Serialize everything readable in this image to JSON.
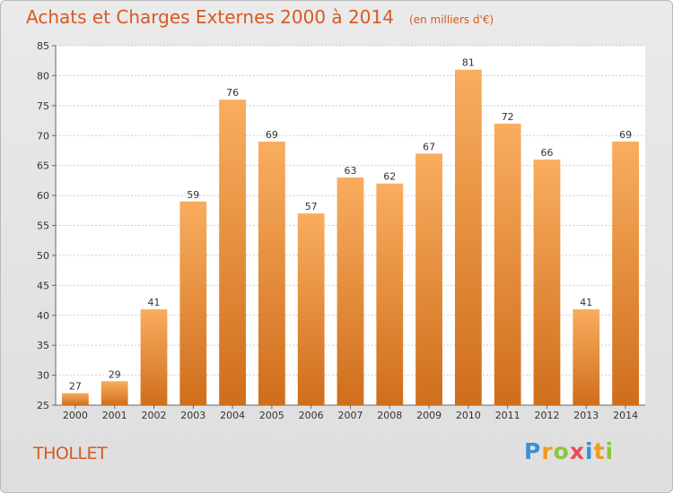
{
  "chart_data": {
    "type": "bar",
    "title": "Achats et Charges Externes 2000 à 2014",
    "subtitle": "(en milliers d'€)",
    "categories": [
      "2000",
      "2001",
      "2002",
      "2003",
      "2004",
      "2005",
      "2006",
      "2007",
      "2008",
      "2009",
      "2010",
      "2011",
      "2012",
      "2013",
      "2014"
    ],
    "values": [
      27,
      29,
      41,
      59,
      76,
      69,
      57,
      63,
      62,
      67,
      81,
      72,
      66,
      41,
      69
    ],
    "ylim": [
      25,
      85
    ],
    "yticks": [
      25,
      30,
      35,
      40,
      45,
      50,
      55,
      60,
      65,
      70,
      75,
      80,
      85
    ],
    "grid": true,
    "bar_color": "#f2903a",
    "bar_color_light": "#f9ad5f",
    "bar_color_dark": "#cf6e1c"
  },
  "commune": "THOLLET",
  "logo": [
    "P",
    "r",
    "o",
    "x",
    "i",
    "t",
    "i"
  ],
  "colors": {
    "title": "#d65a22"
  }
}
